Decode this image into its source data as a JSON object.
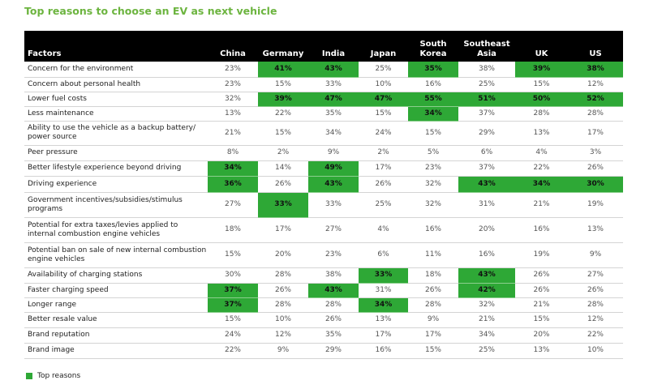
{
  "title": "Top reasons to choose an EV as next vehicle",
  "highlight_color": "#2ea836",
  "columns": [
    "Factors",
    "China",
    "Germany",
    "India",
    "Japan",
    "South Korea",
    "Southeast Asia",
    "UK",
    "US"
  ],
  "rows": [
    {
      "factor": "Concern for the environment",
      "values": [
        "23%",
        "41%",
        "43%",
        "25%",
        "35%",
        "38%",
        "39%",
        "38%"
      ],
      "top": [
        false,
        true,
        true,
        false,
        true,
        false,
        true,
        true
      ]
    },
    {
      "factor": "Concern about personal health",
      "values": [
        "23%",
        "15%",
        "33%",
        "10%",
        "16%",
        "25%",
        "15%",
        "12%"
      ],
      "top": [
        false,
        false,
        false,
        false,
        false,
        false,
        false,
        false
      ]
    },
    {
      "factor": "Lower fuel costs",
      "values": [
        "32%",
        "39%",
        "47%",
        "47%",
        "55%",
        "51%",
        "50%",
        "52%"
      ],
      "top": [
        false,
        true,
        true,
        true,
        true,
        true,
        true,
        true
      ]
    },
    {
      "factor": "Less maintenance",
      "values": [
        "13%",
        "22%",
        "35%",
        "15%",
        "34%",
        "37%",
        "28%",
        "28%"
      ],
      "top": [
        false,
        false,
        false,
        false,
        true,
        false,
        false,
        false
      ]
    },
    {
      "factor": "Ability to use the vehicle as a backup battery/ power source",
      "values": [
        "21%",
        "15%",
        "34%",
        "24%",
        "15%",
        "29%",
        "13%",
        "17%"
      ],
      "top": [
        false,
        false,
        false,
        false,
        false,
        false,
        false,
        false
      ]
    },
    {
      "factor": "Peer pressure",
      "values": [
        "8%",
        "2%",
        "9%",
        "2%",
        "5%",
        "6%",
        "4%",
        "3%"
      ],
      "top": [
        false,
        false,
        false,
        false,
        false,
        false,
        false,
        false
      ]
    },
    {
      "factor": "Better lifestyle experience beyond driving",
      "values": [
        "34%",
        "14%",
        "49%",
        "17%",
        "23%",
        "37%",
        "22%",
        "26%"
      ],
      "top": [
        true,
        false,
        true,
        false,
        false,
        false,
        false,
        false
      ]
    },
    {
      "factor": "Driving experience",
      "values": [
        "36%",
        "26%",
        "43%",
        "26%",
        "32%",
        "43%",
        "34%",
        "30%"
      ],
      "top": [
        true,
        false,
        true,
        false,
        false,
        true,
        true,
        true
      ]
    },
    {
      "factor": "Government incentives/subsidies/stimulus programs",
      "values": [
        "27%",
        "33%",
        "33%",
        "25%",
        "32%",
        "31%",
        "21%",
        "19%"
      ],
      "top": [
        false,
        true,
        false,
        false,
        false,
        false,
        false,
        false
      ]
    },
    {
      "factor": "Potential for extra taxes/levies applied to internal combustion engine vehicles",
      "values": [
        "18%",
        "17%",
        "27%",
        "4%",
        "16%",
        "20%",
        "16%",
        "13%"
      ],
      "top": [
        false,
        false,
        false,
        false,
        false,
        false,
        false,
        false
      ]
    },
    {
      "factor": "Potential ban on sale of new internal combustion engine vehicles",
      "values": [
        "15%",
        "20%",
        "23%",
        "6%",
        "11%",
        "16%",
        "19%",
        "9%"
      ],
      "top": [
        false,
        false,
        false,
        false,
        false,
        false,
        false,
        false
      ]
    },
    {
      "factor": "Availability of charging stations",
      "values": [
        "30%",
        "28%",
        "38%",
        "33%",
        "18%",
        "43%",
        "26%",
        "27%"
      ],
      "top": [
        false,
        false,
        false,
        true,
        false,
        true,
        false,
        false
      ]
    },
    {
      "factor": "Faster charging speed",
      "values": [
        "37%",
        "26%",
        "43%",
        "31%",
        "26%",
        "42%",
        "26%",
        "26%"
      ],
      "top": [
        true,
        false,
        true,
        false,
        false,
        true,
        false,
        false
      ]
    },
    {
      "factor": "Longer range",
      "values": [
        "37%",
        "28%",
        "28%",
        "34%",
        "28%",
        "32%",
        "21%",
        "28%"
      ],
      "top": [
        true,
        false,
        false,
        true,
        false,
        false,
        false,
        false
      ]
    },
    {
      "factor": "Better resale value",
      "values": [
        "15%",
        "10%",
        "26%",
        "13%",
        "9%",
        "21%",
        "15%",
        "12%"
      ],
      "top": [
        false,
        false,
        false,
        false,
        false,
        false,
        false,
        false
      ]
    },
    {
      "factor": "Brand reputation",
      "values": [
        "24%",
        "12%",
        "35%",
        "17%",
        "17%",
        "34%",
        "20%",
        "22%"
      ],
      "top": [
        false,
        false,
        false,
        false,
        false,
        false,
        false,
        false
      ]
    },
    {
      "factor": "Brand image",
      "values": [
        "22%",
        "9%",
        "29%",
        "16%",
        "15%",
        "25%",
        "13%",
        "10%"
      ],
      "top": [
        false,
        false,
        false,
        false,
        false,
        false,
        false,
        false
      ]
    }
  ],
  "legend": {
    "label": "Top reasons"
  }
}
